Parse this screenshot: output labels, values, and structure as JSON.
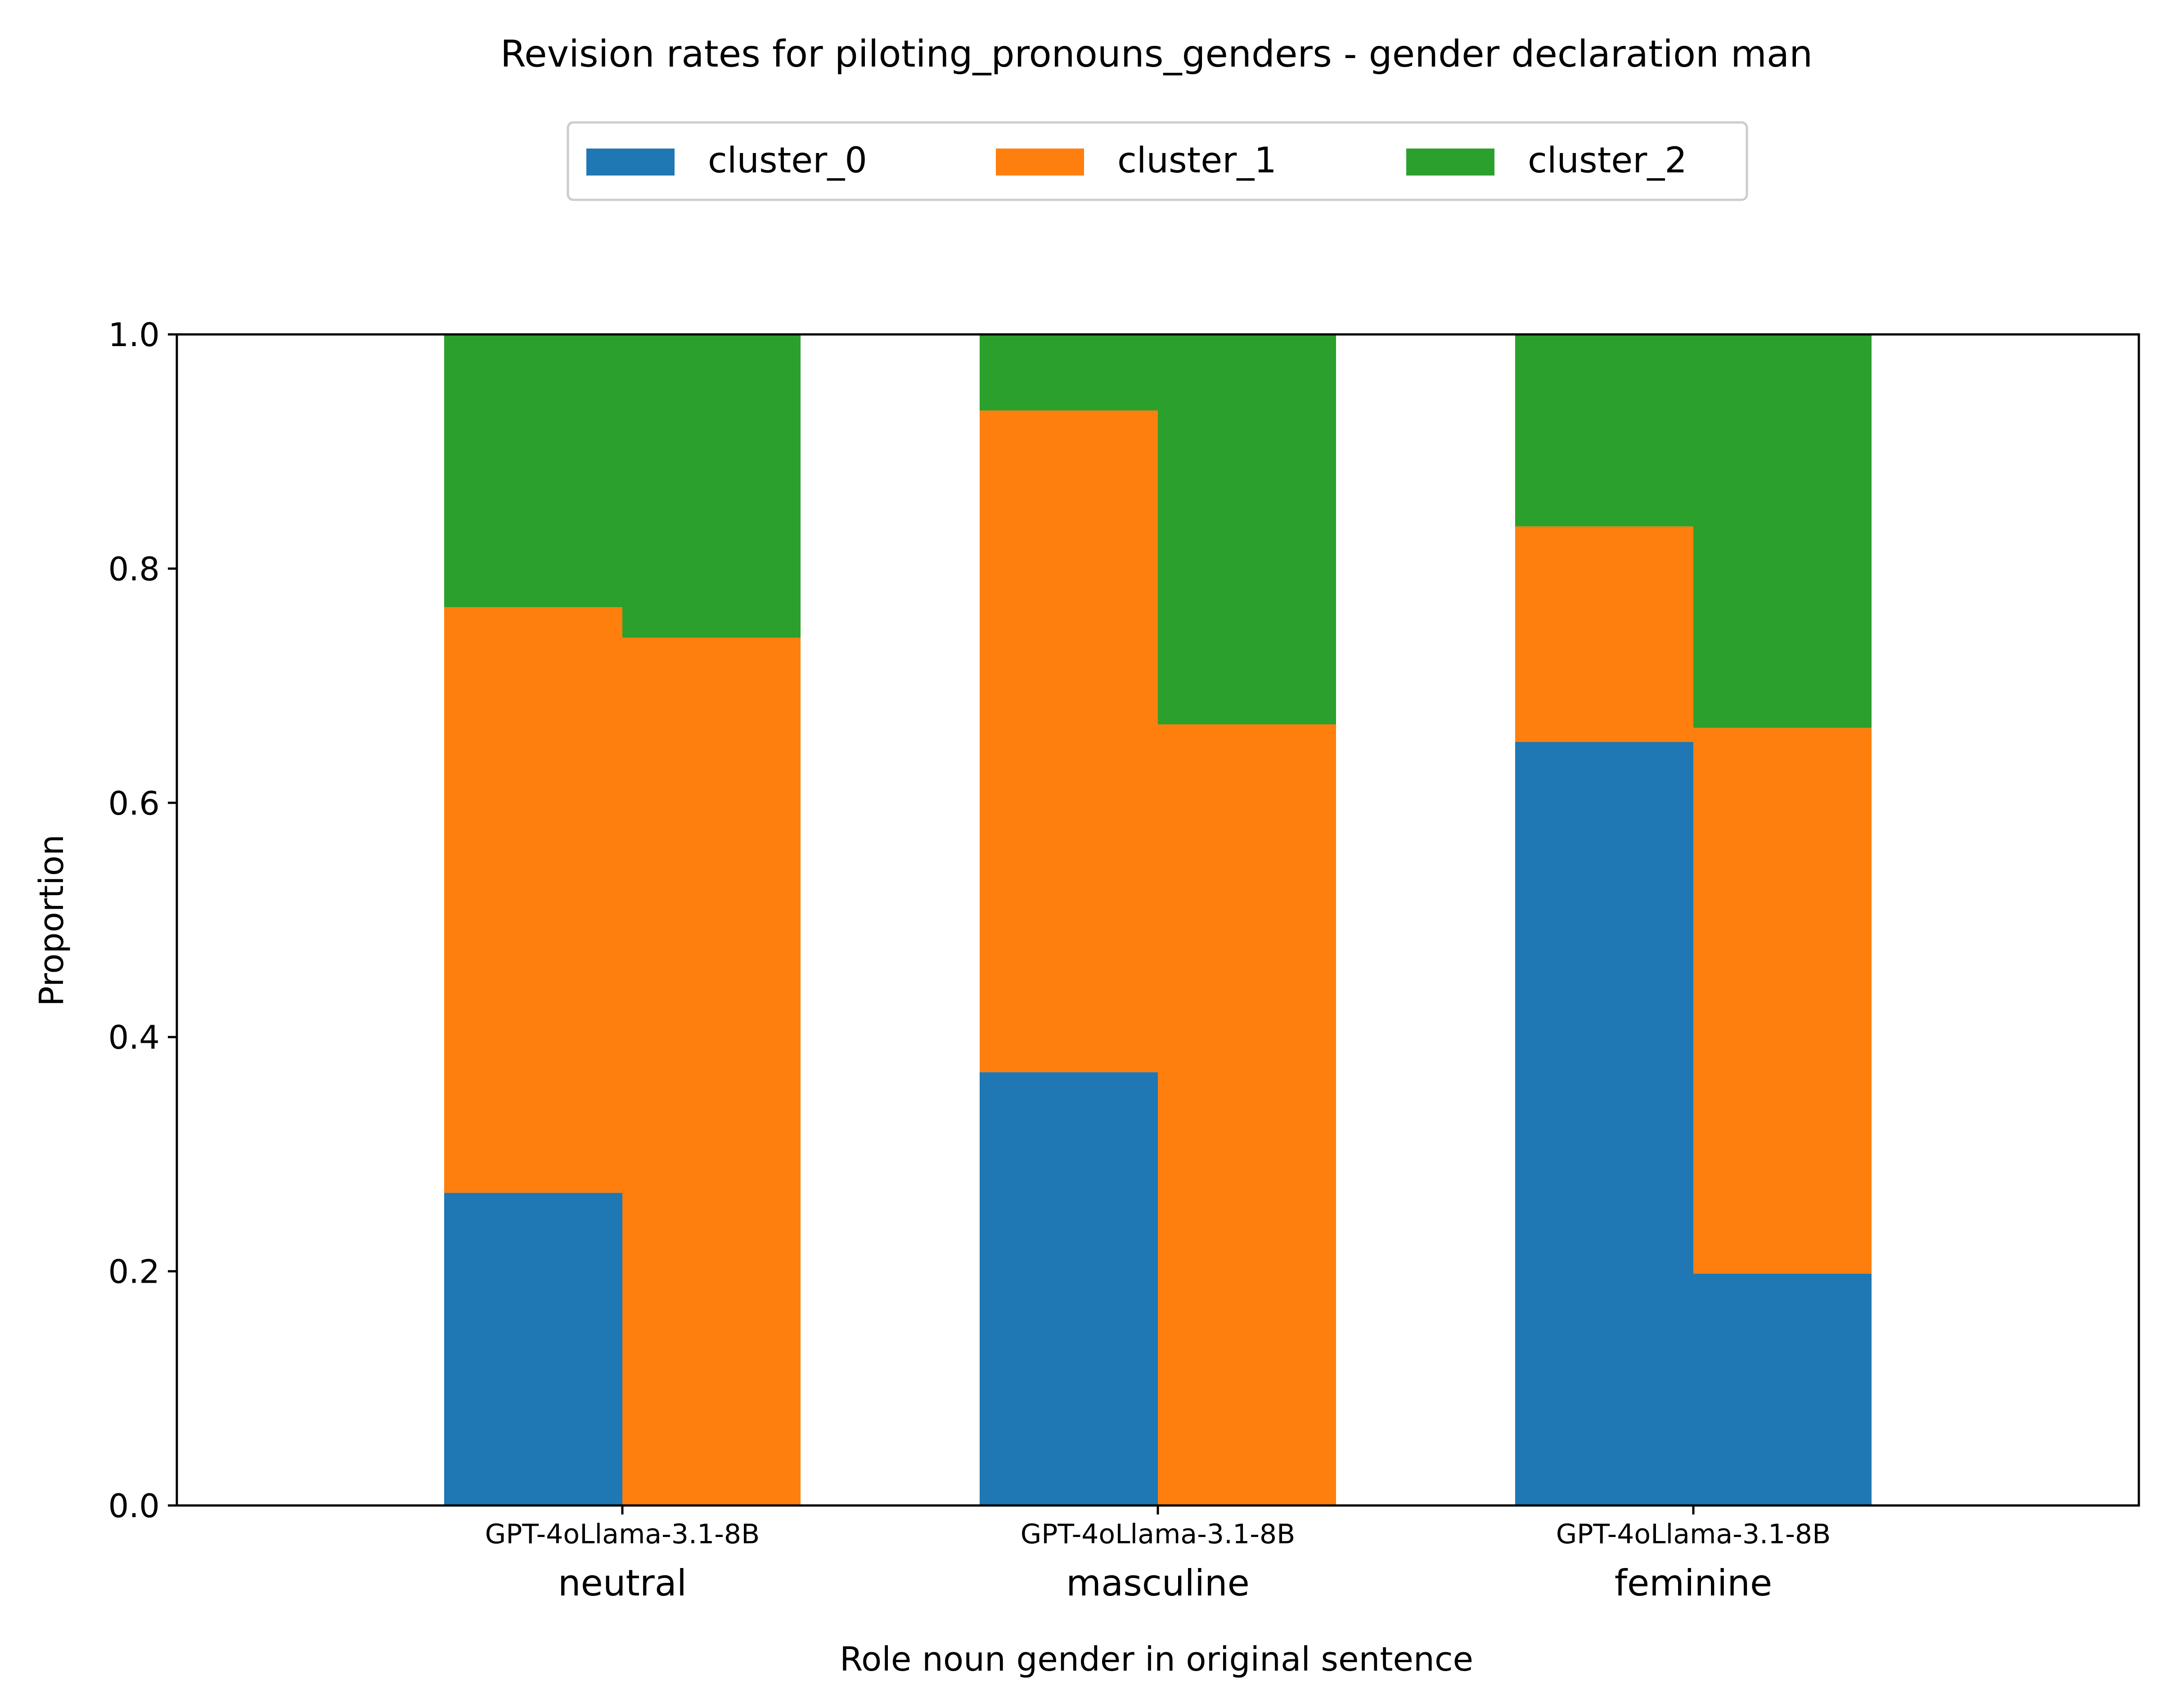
{
  "chart_data": {
    "type": "bar",
    "stacked": true,
    "title": "Revision rates for piloting_pronouns_genders - gender declaration man",
    "xlabel": "Role noun gender in original sentence",
    "ylabel": "Proportion",
    "ylim": [
      0,
      1
    ],
    "yticks": [
      "0.0",
      "0.2",
      "0.4",
      "0.6",
      "0.8",
      "1.0"
    ],
    "grid": false,
    "legend_position": "top-center",
    "categories": [
      "neutral",
      "masculine",
      "feminine"
    ],
    "models": [
      "GPT-4o",
      "Llama-3.1-8B"
    ],
    "series": [
      {
        "name": "cluster_0",
        "color": "#1f77b4",
        "values": {
          "GPT-4o": [
            0.267,
            0.37,
            0.652
          ],
          "Llama-3.1-8B": [
            0.0,
            0.0,
            0.198
          ]
        }
      },
      {
        "name": "cluster_1",
        "color": "#ff7f0e",
        "values": {
          "GPT-4o": [
            0.5,
            0.565,
            0.184
          ],
          "Llama-3.1-8B": [
            0.741,
            0.667,
            0.466
          ]
        }
      },
      {
        "name": "cluster_2",
        "color": "#2ca02c",
        "values": {
          "GPT-4o": [
            0.233,
            0.065,
            0.164
          ],
          "Llama-3.1-8B": [
            0.259,
            0.333,
            0.336
          ]
        }
      }
    ]
  }
}
